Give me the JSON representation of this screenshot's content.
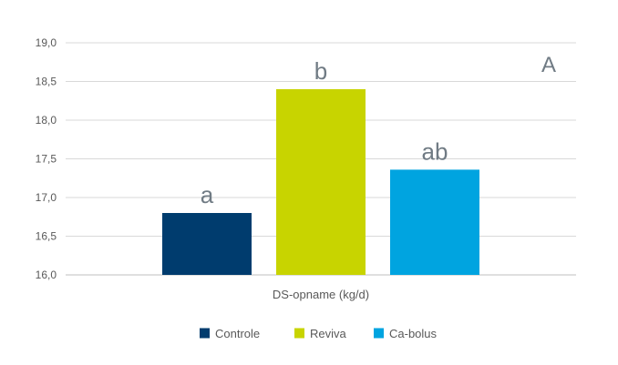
{
  "chart_data": {
    "type": "bar",
    "panel_label": "A",
    "xlabel": "DS-opname (kg/d)",
    "ylim": [
      16.0,
      19.0
    ],
    "yticks": [
      "16,0",
      "16,5",
      "17,0",
      "17,5",
      "18,0",
      "18,5",
      "19,0"
    ],
    "ytick_values": [
      16.0,
      16.5,
      17.0,
      17.5,
      18.0,
      18.5,
      19.0
    ],
    "grid": true,
    "legend_position": "bottom",
    "series": [
      {
        "name": "Controle",
        "value": 16.8,
        "label": "a",
        "color": "#003c6e"
      },
      {
        "name": "Reviva",
        "value": 18.4,
        "label": "b",
        "color": "#c8d400"
      },
      {
        "name": "Ca-bolus",
        "value": 17.36,
        "label": "ab",
        "color": "#00a4e0"
      }
    ]
  }
}
